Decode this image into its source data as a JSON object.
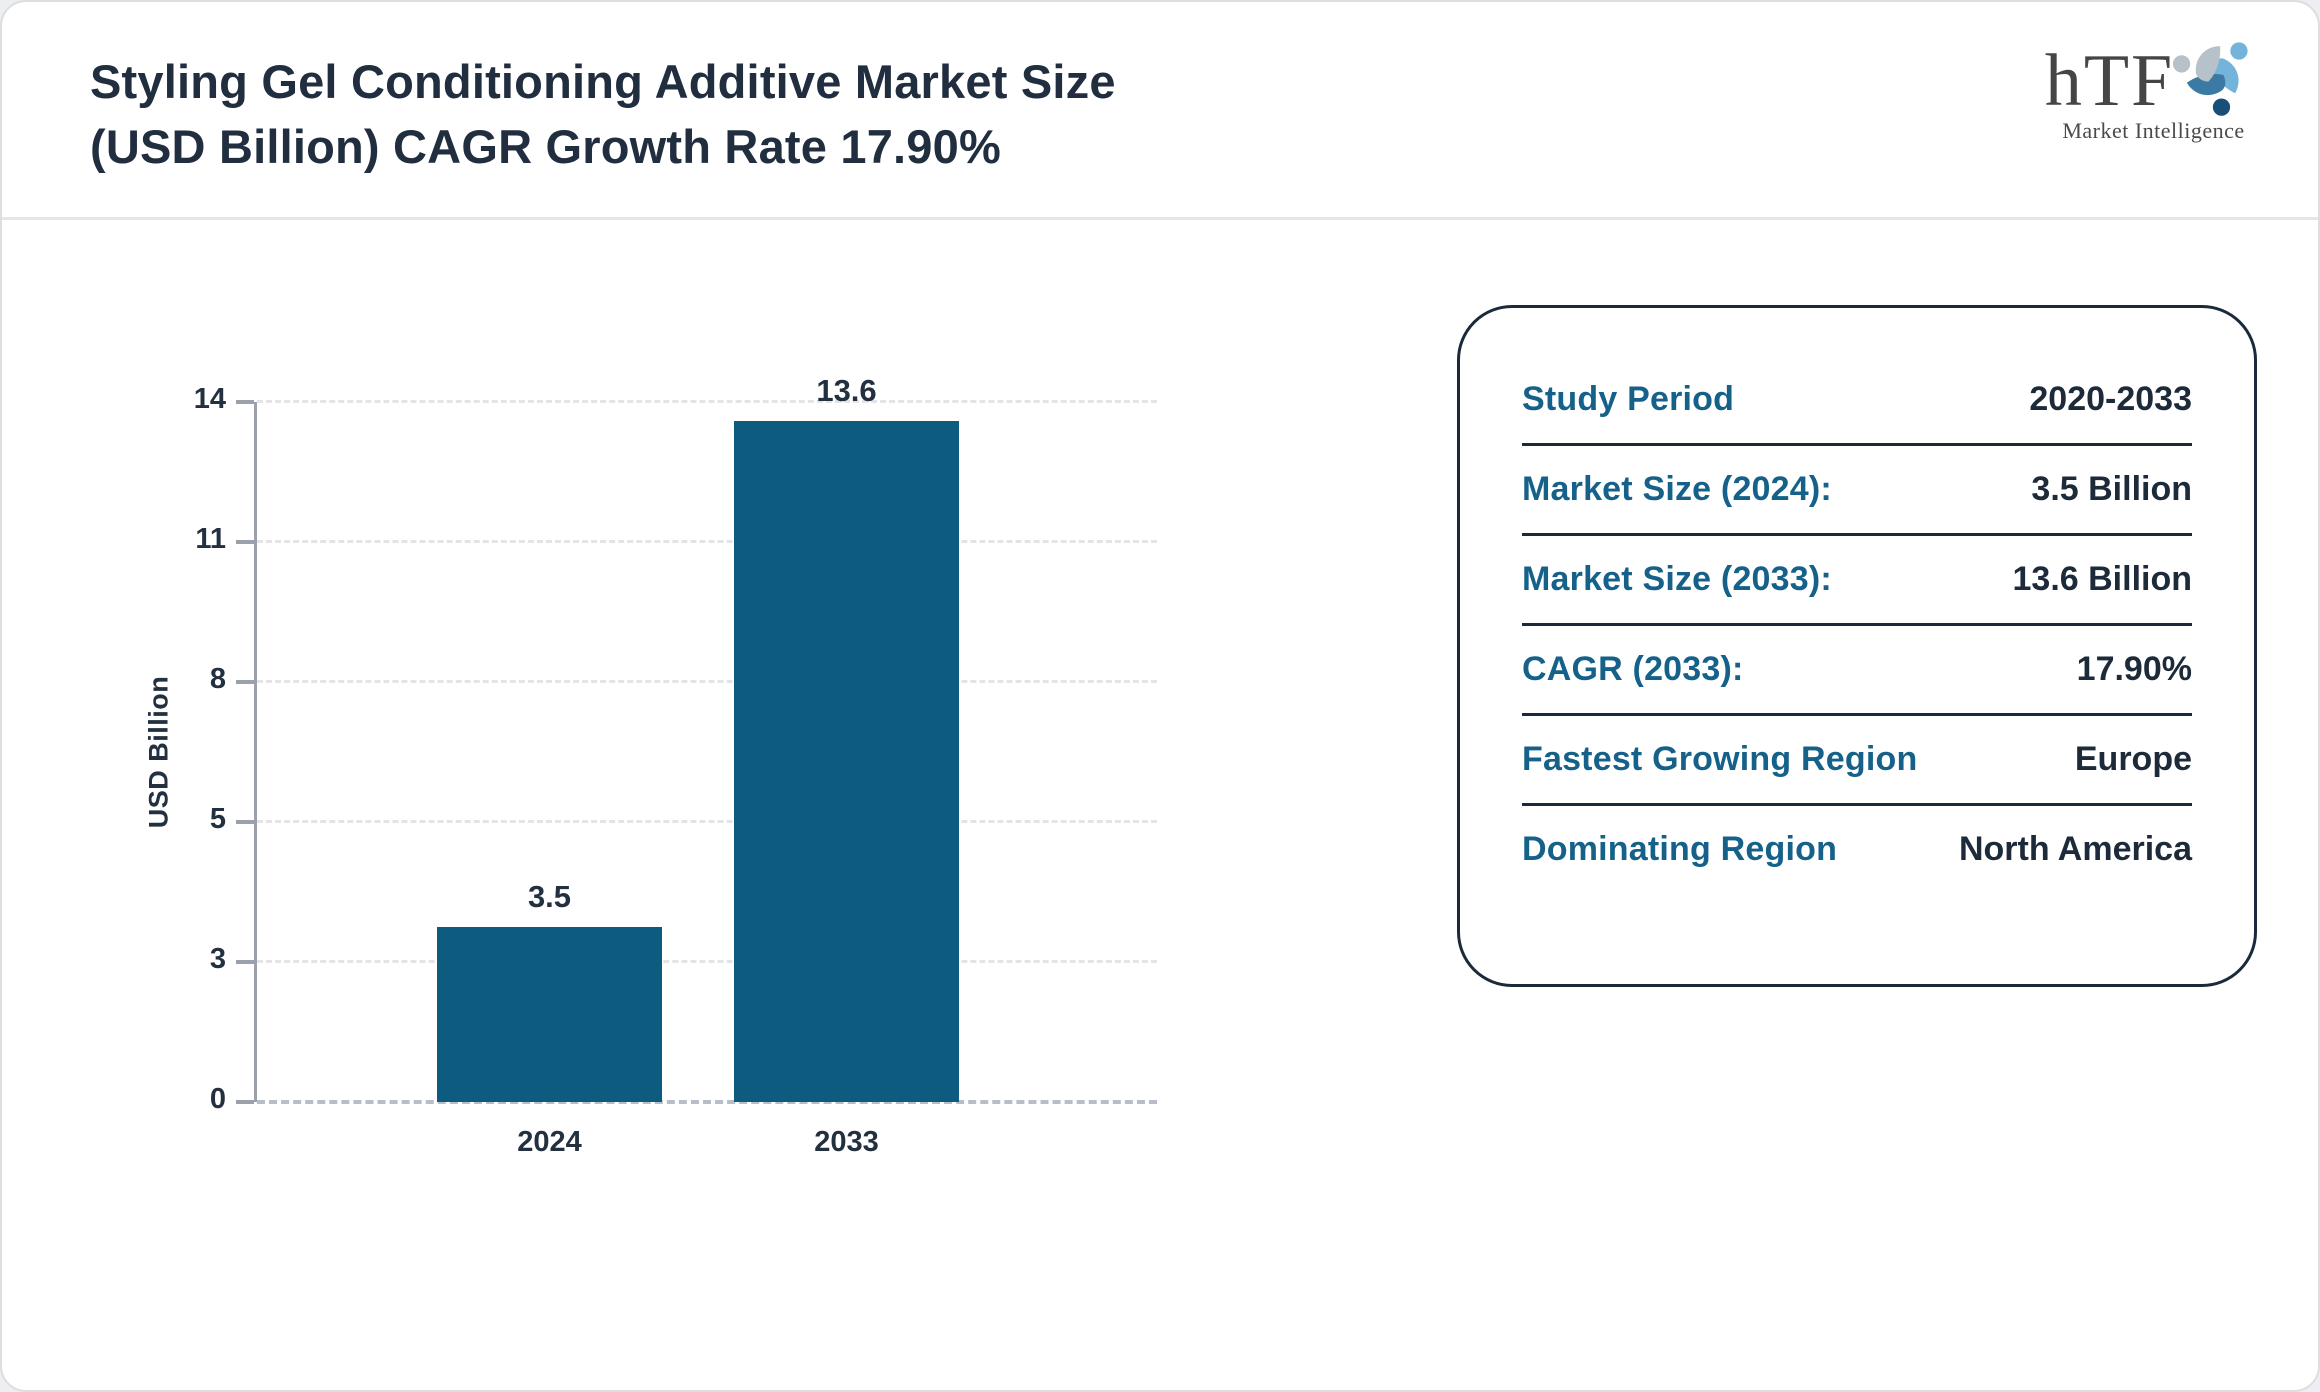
{
  "header": {
    "title_lines": [
      "Styling Gel Conditioning Additive Market Size",
      "(USD Billion) CAGR Growth Rate 17.90%"
    ],
    "logo": {
      "text": "hTF",
      "subtext": "Market Intelligence",
      "swirl_colors": {
        "light_blue": "#74b3da",
        "steel_blue": "#3c7aa6",
        "dark_blue": "#174f78",
        "gray_blue": "#b6c1ca"
      }
    }
  },
  "chart_data": {
    "type": "bar",
    "title": "Styling Gel Conditioning Additive Market Size (USD Billion) CAGR Growth Rate 17.90%",
    "categories": [
      "2024",
      "2033"
    ],
    "values": [
      3.5,
      13.6
    ],
    "value_labels": [
      "3.5",
      "13.6"
    ],
    "xlabel": "",
    "ylabel": "USD Billion",
    "yticks": [
      0,
      3,
      5,
      8,
      11,
      14
    ],
    "ylim": [
      0,
      14
    ],
    "bar_color": "#0d5c80",
    "grid": "horizontal-dashed",
    "legend_position": "none"
  },
  "info_card": {
    "rows": [
      {
        "label": "Study Period",
        "value": "2020-2033"
      },
      {
        "label": "Market Size (2024):",
        "value": "3.5 Billion"
      },
      {
        "label": "Market Size (2033):",
        "value": "13.6 Billion"
      },
      {
        "label": "CAGR (2033):",
        "value": "17.90%"
      },
      {
        "label": "Fastest Growing Region",
        "value": "Europe"
      },
      {
        "label": "Dominating Region",
        "value": "North America"
      }
    ]
  },
  "colors": {
    "bar": "#0d5c80",
    "label_teal": "#15618a",
    "text_dark": "#212e3f",
    "axis_gray": "#9aa1ab",
    "gridline": "#e4e4e6"
  }
}
